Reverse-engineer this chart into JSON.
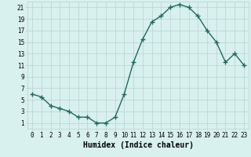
{
  "x": [
    0,
    1,
    2,
    3,
    4,
    5,
    6,
    7,
    8,
    9,
    10,
    11,
    12,
    13,
    14,
    15,
    16,
    17,
    18,
    19,
    20,
    21,
    22,
    23
  ],
  "y": [
    6,
    5.5,
    4,
    3.5,
    3,
    2,
    2,
    1,
    1,
    2,
    6,
    11.5,
    15.5,
    18.5,
    19.5,
    21,
    21.5,
    21,
    19.5,
    17,
    15,
    11.5,
    13,
    11
  ],
  "line_color": "#1e6b5e",
  "marker_color": "#1e6b5e",
  "bg_color": "#d8f0ee",
  "grid_color": "#b8d4d0",
  "xlabel": "Humidex (Indice chaleur)",
  "xlabel_fontsize": 7,
  "xlim": [
    -0.5,
    23.5
  ],
  "ylim": [
    0,
    22
  ],
  "yticks": [
    1,
    3,
    5,
    7,
    9,
    11,
    13,
    15,
    17,
    19,
    21
  ],
  "xticks": [
    0,
    1,
    2,
    3,
    4,
    5,
    6,
    7,
    8,
    9,
    10,
    11,
    12,
    13,
    14,
    15,
    16,
    17,
    18,
    19,
    20,
    21,
    22,
    23
  ],
  "tick_fontsize": 5.5,
  "line_width": 1.0,
  "marker_size": 2.2
}
